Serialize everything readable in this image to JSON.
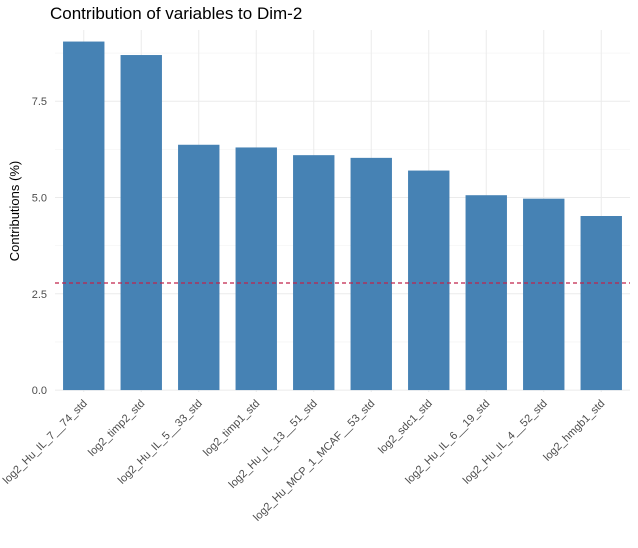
{
  "chart_data": {
    "type": "bar",
    "title": "Contribution of variables to Dim-2",
    "xlabel": "",
    "ylabel": "Contributions (%)",
    "categories": [
      "log2_Hu_IL_7__74_std",
      "log2_timp2_std",
      "log2_Hu_IL_5__33_std",
      "log2_timp1_std",
      "log2_Hu_IL_13__51_std",
      "log2_Hu_MCP_1_MCAF__53_std",
      "log2_sdc1_std",
      "log2_Hu_IL_6__19_std",
      "log2_Hu_IL_4__52_std",
      "log2_hmgb1_std"
    ],
    "values": [
      9.05,
      8.7,
      6.37,
      6.3,
      6.1,
      6.03,
      5.7,
      5.06,
      4.97,
      4.52
    ],
    "reference_line": 2.78,
    "ylim": [
      -0.05,
      9.35
    ],
    "yticks": [
      0.0,
      2.5,
      5.0,
      7.5
    ],
    "ytick_labels": [
      "0.0",
      "2.5",
      "5.0",
      "7.5"
    ],
    "grid": true,
    "legend": "none",
    "colors": {
      "bar": "#4682b4",
      "reference_line": "#c0234b",
      "grid_major": "#ebebeb",
      "grid_minor": "#f5f5f5",
      "tick_text": "#4d4d4d"
    }
  }
}
